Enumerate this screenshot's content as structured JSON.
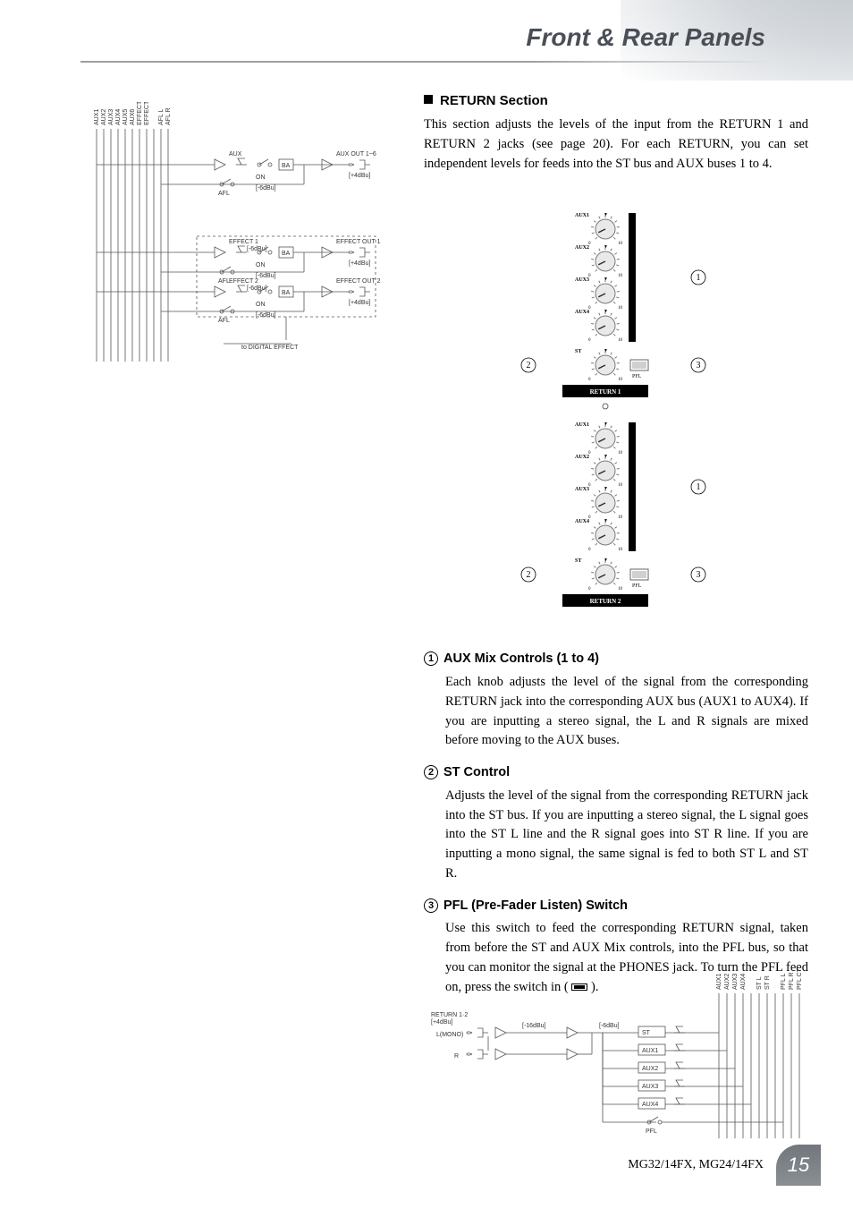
{
  "header": {
    "title": "Front & Rear Panels"
  },
  "section": {
    "title": "RETURN Section",
    "intro": "This section adjusts the levels of the input from the RETURN 1 and RETURN 2 jacks (see page 20). For each RETURN, you can set independent levels for feeds into the ST bus and AUX buses 1 to 4."
  },
  "panel": {
    "return1_label": "RETURN 1",
    "return2_label": "RETURN 2",
    "knobs": [
      {
        "label": "AUX1"
      },
      {
        "label": "AUX2"
      },
      {
        "label": "AUX3"
      },
      {
        "label": "AUX4"
      }
    ],
    "st_label": "ST",
    "pfl_label": "PFL",
    "scale_min": "0",
    "scale_nom": "▼",
    "scale_max": "10",
    "knob_radius": 11,
    "knob_fill": "#e9e9e9",
    "knob_stroke": "#7a7a7a",
    "tick_color": "#777",
    "panel_bg": "#ffffff",
    "pfl_button_w": 20,
    "pfl_button_h": 12,
    "circle_callouts": {
      "c1": "1",
      "c2": "2",
      "c3": "3"
    }
  },
  "callouts": [
    {
      "num": "1",
      "title": "AUX Mix Controls (1 to 4)",
      "body": "Each knob adjusts the level of the signal from the corresponding RETURN jack into the corresponding AUX bus (AUX1 to AUX4). If you are inputting a stereo signal, the L and R signals are mixed before moving to the AUX buses."
    },
    {
      "num": "2",
      "title": "ST Control",
      "body": "Adjusts the level of the signal from the corresponding RETURN jack into the ST bus. If you are inputting a stereo signal, the L signal goes into the ST L line and the R signal goes into ST R line. If you are inputting a mono signal, the same signal is fed to both ST L and ST R."
    },
    {
      "num": "3",
      "title": "PFL (Pre-Fader Listen) Switch",
      "body_pre": "Use this switch to feed the corresponding RETURN signal, taken from before the ST and AUX Mix controls, into the PFL bus, so that you can monitor the signal at the PHONES jack. To turn the PFL feed on, press the switch in ( ",
      "body_post": " )."
    }
  ],
  "schematic_top": {
    "bus_labels": [
      "AUX1",
      "AUX2",
      "AUX3",
      "AUX4",
      "AUX5",
      "AUX6",
      "EFFECT 1",
      "EFFECT 2",
      "",
      "AFL L",
      "AFL R"
    ],
    "rows": [
      {
        "knob_label": "AUX",
        "out_label": "AUX OUT 1~6",
        "level": "[+4dBu]",
        "afl": "AFL"
      },
      {
        "knob_label": "EFFECT 1",
        "out_label": "EFFECT OUT 1",
        "level": "[+4dBu]",
        "afl": "AFL",
        "sig": "[-6dBu]"
      },
      {
        "knob_label": "EFFECT 2",
        "out_label": "EFFECT OUT 2",
        "level": "[+4dBu]",
        "afl": "AFL",
        "sig": "[-6dBu]"
      }
    ],
    "footer": "to DIGITAL EFFECT"
  },
  "schematic_bottom": {
    "input_label": "RETURN 1·2",
    "input_level": "[+4dBu]",
    "l_label": "L(MONO)",
    "r_label": "R",
    "sig_level": "[-6dBu]",
    "knob_level_a": "[-16dBu]",
    "knob_level_b": "[-6dBu]",
    "node_labels": [
      "ST",
      "AUX1",
      "AUX2",
      "AUX3",
      "AUX4",
      "PFL"
    ],
    "bus_labels": [
      "AUX1",
      "AUX2",
      "AUX3",
      "AUX4",
      "",
      "ST L",
      "ST R",
      "",
      "PFL L",
      "PFL R",
      "PFL CTRL"
    ]
  },
  "footer": {
    "model": "MG32/14FX, MG24/14FX",
    "page": "15"
  },
  "colors": {
    "header_text": "#4a4e56",
    "header_line": "#9aa0a6",
    "corner_gradient_a": "#bfc5cb",
    "corner_gradient_b": "#eceef0",
    "page_tab_top": "#70767c",
    "page_tab_bottom": "#8a8f94",
    "schematic_stroke": "#555",
    "black": "#000000"
  }
}
